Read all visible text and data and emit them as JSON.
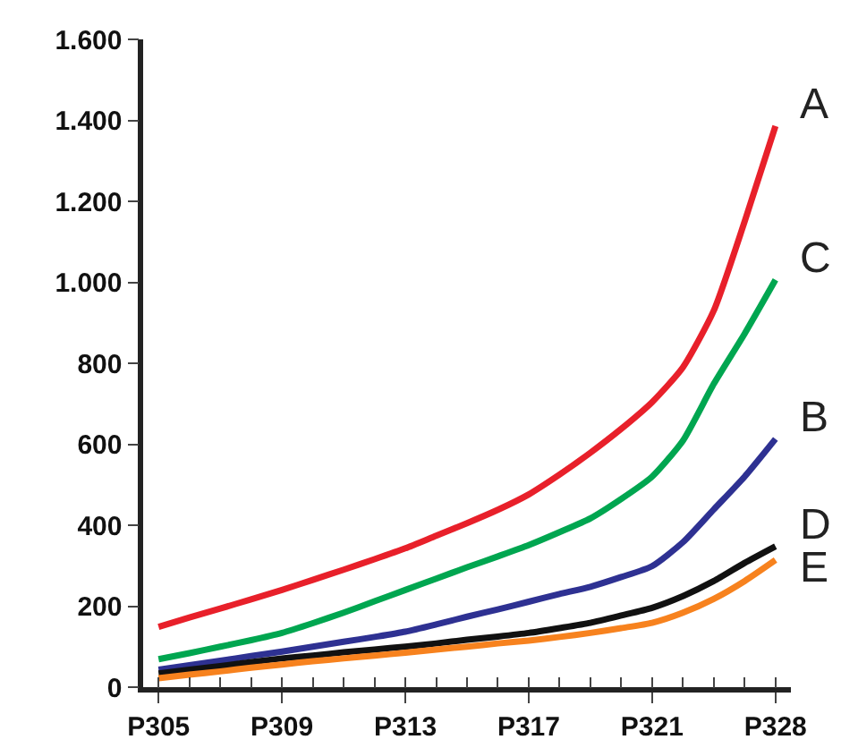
{
  "chart_data": {
    "type": "line",
    "categories": [
      "P305",
      null,
      null,
      null,
      "P309",
      null,
      null,
      null,
      "P313",
      null,
      null,
      null,
      "P317",
      null,
      null,
      null,
      "P321",
      null,
      null,
      null,
      "P328"
    ],
    "series": [
      {
        "name": "A",
        "color": "#e8202a",
        "values": [
          149,
          172,
          194,
          217,
          240,
          265,
          290,
          316,
          343,
          374,
          405,
          438,
          476,
          525,
          579,
          638,
          704,
          790,
          930,
          1150,
          1386
        ]
      },
      {
        "name": "C",
        "color": "#00a650",
        "values": [
          69,
          84,
          100,
          116,
          134,
          158,
          184,
          212,
          240,
          268,
          296,
          323,
          351,
          383,
          417,
          465,
          520,
          609,
          749,
          873,
          1006
        ]
      },
      {
        "name": "B",
        "color": "#2e3192",
        "values": [
          43,
          54,
          65,
          77,
          88,
          100,
          112,
          124,
          137,
          155,
          174,
          192,
          211,
          230,
          248,
          272,
          299,
          358,
          439,
          520,
          613
        ]
      },
      {
        "name": "D",
        "color": "#111111",
        "values": [
          34,
          43,
          52,
          62,
          71,
          78,
          86,
          93,
          100,
          108,
          117,
          125,
          134,
          146,
          159,
          177,
          196,
          225,
          262,
          307,
          348
        ]
      },
      {
        "name": "E",
        "color": "#f7821e",
        "values": [
          22,
          31,
          39,
          48,
          56,
          64,
          71,
          78,
          85,
          93,
          100,
          108,
          115,
          124,
          134,
          146,
          159,
          184,
          218,
          262,
          314
        ]
      }
    ],
    "ylim": [
      0,
      1600
    ],
    "yticks": [
      0,
      200,
      400,
      600,
      800,
      {
        "value": 1000,
        "label": "1.000"
      },
      {
        "value": 1200,
        "label": "1.200"
      },
      {
        "value": 1400,
        "label": "1.400"
      },
      {
        "value": 1600,
        "label": "1.600"
      }
    ],
    "grid": false,
    "legend": false,
    "marker": "none",
    "line_style": "solid"
  }
}
